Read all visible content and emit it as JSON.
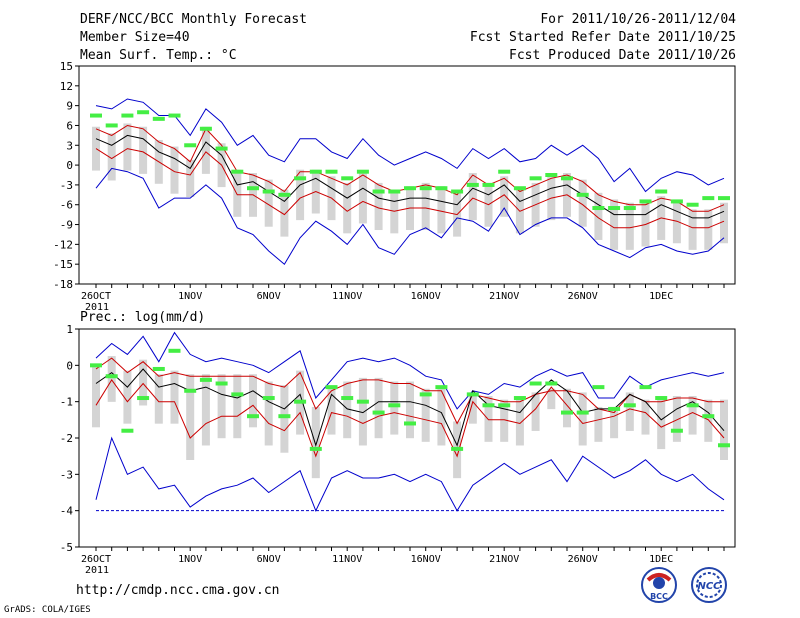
{
  "header": {
    "line1_left": "DERF/NCC/BCC Monthly Forecast",
    "line2_left": "Member Size=40",
    "line3_left": "Mean Surf. Temp.: °C",
    "line1_right": "For 2011/10/26-2011/12/04",
    "line2_right": "Fcst Started Refer Date 2011/10/25",
    "line3_right": "Fcst Produced Date 2011/10/26"
  },
  "footer": {
    "url": "http://cmdp.ncc.cma.gov.cn",
    "credit": "GrADS: COLA/IGES",
    "logo_left": "BCC",
    "logo_right": "NCC"
  },
  "colors": {
    "envelope": "#0000cc",
    "spread": "#cc0000",
    "mean": "#000000",
    "box": "#d4d4d4",
    "obs": "#44ee44",
    "dashed": "#0000cc"
  },
  "chart_data": [
    {
      "type": "line",
      "title": "Mean Surf. Temp.: °C",
      "x_labels": [
        "26OCT",
        "1NOV",
        "6NOV",
        "11NOV",
        "16NOV",
        "21NOV",
        "26NOV",
        "1DEC"
      ],
      "x_year_label": "2011",
      "ylim": [
        -18,
        15
      ],
      "yticks": [
        -18,
        -15,
        -12,
        -9,
        -6,
        -3,
        0,
        3,
        6,
        9,
        12,
        15
      ],
      "series": [
        {
          "name": "max",
          "values": [
            9,
            8.5,
            10,
            9.5,
            7.5,
            7.5,
            4.5,
            8.5,
            6.5,
            3,
            4.5,
            1.5,
            0.5,
            4,
            4,
            2,
            1,
            4,
            1.5,
            0,
            1,
            2,
            1,
            -0.5,
            2.5,
            1,
            2.5,
            0.5,
            1,
            3,
            1.5,
            3,
            1,
            -2.5,
            -0.5,
            -4,
            -2,
            -1,
            -1.5,
            -3,
            -2
          ]
        },
        {
          "name": "upper",
          "values": [
            5.5,
            4.5,
            6,
            5.5,
            3.5,
            2.5,
            0.5,
            5.5,
            3,
            -1,
            -1.5,
            -2.5,
            -4,
            -1,
            -1,
            -2,
            -3,
            -1.5,
            -3,
            -4,
            -3.5,
            -3,
            -3.5,
            -4.5,
            -1.5,
            -3,
            -2,
            -4,
            -3,
            -2,
            -1.5,
            -2.5,
            -4.5,
            -5.5,
            -6,
            -6,
            -5,
            -5.5,
            -7,
            -7,
            -6
          ]
        },
        {
          "name": "mean",
          "values": [
            4,
            3,
            4.5,
            4,
            2,
            1,
            -0.5,
            3.5,
            1.5,
            -3,
            -2.5,
            -4,
            -5.5,
            -3,
            -2,
            -3.5,
            -5,
            -3.5,
            -5,
            -5.5,
            -5,
            -5,
            -5.5,
            -6,
            -3.5,
            -4.5,
            -3,
            -5.5,
            -4.5,
            -3.5,
            -3,
            -4.5,
            -6,
            -7.5,
            -7.5,
            -7.5,
            -6,
            -7,
            -8,
            -8,
            -7
          ]
        },
        {
          "name": "lower",
          "values": [
            2.5,
            1,
            2.5,
            2,
            0.5,
            -1,
            -1.5,
            2,
            0,
            -4.5,
            -4.5,
            -6,
            -7.5,
            -5,
            -4,
            -5,
            -7,
            -5.5,
            -6.5,
            -7,
            -6.5,
            -6.5,
            -7,
            -7.5,
            -5,
            -6,
            -4.5,
            -7,
            -6,
            -5,
            -4.5,
            -6,
            -8,
            -9.5,
            -9.5,
            -9,
            -8,
            -8.5,
            -9.5,
            -9.5,
            -8.5
          ]
        },
        {
          "name": "min",
          "values": [
            -3.5,
            -0.5,
            -1,
            -2,
            -6.5,
            -5,
            -5,
            -3,
            -5,
            -9.5,
            -10.5,
            -13,
            -15,
            -11,
            -8.5,
            -10,
            -12,
            -9,
            -12.5,
            -13.5,
            -10.5,
            -9.5,
            -11,
            -8,
            -8.5,
            -10,
            -6.5,
            -10.5,
            -9,
            -8,
            -8,
            -9.5,
            -12,
            -13,
            -14,
            -12.5,
            -12,
            -13,
            -13.5,
            -13,
            -11
          ]
        }
      ],
      "obs": [
        7.5,
        6,
        7.5,
        8,
        7,
        7.5,
        3,
        5.5,
        2.5,
        -1,
        -3.5,
        -4,
        -4.5,
        -2,
        -1,
        -1,
        -2,
        -1,
        -4,
        -4,
        -3.5,
        -3.5,
        -3.5,
        -4,
        -3,
        -3,
        -1,
        -3.5,
        -2,
        -1.5,
        -2,
        -4.5,
        -6.5,
        -6.5,
        -6.5,
        -5.5,
        -4,
        -5.5,
        -6,
        -5,
        -5
      ]
    },
    {
      "type": "line",
      "title": "Prec.: log(mm/d)",
      "x_labels": [
        "26OCT",
        "1NOV",
        "6NOV",
        "11NOV",
        "16NOV",
        "21NOV",
        "26NOV",
        "1DEC"
      ],
      "x_year_label": "2011",
      "ylim": [
        -5,
        1
      ],
      "yticks": [
        -5,
        -4,
        -3,
        -2,
        -1,
        0,
        1
      ],
      "series": [
        {
          "name": "max",
          "values": [
            0.2,
            0.6,
            0.3,
            0.8,
            0.1,
            0.9,
            0.3,
            0.1,
            0.2,
            0.1,
            0,
            -0.2,
            0.1,
            0.4,
            -0.9,
            -0.4,
            0.1,
            0.2,
            0.1,
            0.2,
            0,
            -0.3,
            -0.4,
            -1.2,
            -0.7,
            -0.8,
            -0.5,
            -0.6,
            -0.3,
            -0.1,
            -0.3,
            -0.2,
            -0.9,
            -0.9,
            -0.3,
            -0.6,
            -0.4,
            -0.3,
            -0.2,
            -0.3,
            -0.2
          ]
        },
        {
          "name": "upper",
          "values": [
            -0.1,
            0.2,
            -0.2,
            0.1,
            -0.3,
            -0.2,
            -0.3,
            -0.3,
            -0.3,
            -0.3,
            -0.3,
            -0.5,
            -0.6,
            -0.2,
            -1.2,
            -0.7,
            -0.5,
            -0.4,
            -0.4,
            -0.5,
            -0.5,
            -0.7,
            -0.7,
            -1.6,
            -0.8,
            -0.9,
            -1.0,
            -1.0,
            -0.8,
            -0.7,
            -0.7,
            -0.8,
            -1.2,
            -1.3,
            -0.8,
            -1.0,
            -1.0,
            -0.9,
            -0.9,
            -1.0,
            -1.0
          ]
        },
        {
          "name": "mean",
          "values": [
            -0.5,
            -0.2,
            -0.6,
            -0.1,
            -0.6,
            -0.5,
            -0.7,
            -0.6,
            -0.8,
            -0.9,
            -0.7,
            -1.0,
            -1.2,
            -0.8,
            -2.2,
            -0.8,
            -1.2,
            -1.3,
            -1.0,
            -1.0,
            -1.0,
            -1.1,
            -1.3,
            -2.2,
            -0.7,
            -1.1,
            -1.2,
            -1.3,
            -0.8,
            -0.4,
            -0.7,
            -1.3,
            -1.2,
            -1.2,
            -0.8,
            -1.0,
            -1.5,
            -1.2,
            -1.0,
            -1.3,
            -1.8
          ]
        },
        {
          "name": "lower",
          "values": [
            -1.1,
            -0.4,
            -1.0,
            -0.5,
            -1.0,
            -1.0,
            -2.0,
            -1.6,
            -1.4,
            -1.4,
            -1.1,
            -1.6,
            -1.8,
            -1.3,
            -2.5,
            -1.3,
            -1.4,
            -1.6,
            -1.4,
            -1.3,
            -1.4,
            -1.5,
            -1.6,
            -2.5,
            -1.0,
            -1.5,
            -1.5,
            -1.6,
            -1.2,
            -0.6,
            -1.1,
            -1.6,
            -1.5,
            -1.4,
            -1.2,
            -1.3,
            -1.7,
            -1.5,
            -1.3,
            -1.5,
            -2.0
          ]
        },
        {
          "name": "min",
          "values": [
            -3.7,
            -2.0,
            -3.0,
            -2.8,
            -3.4,
            -3.3,
            -3.9,
            -3.6,
            -3.4,
            -3.3,
            -3.1,
            -3.5,
            -3.2,
            -2.9,
            -4.0,
            -3.1,
            -2.9,
            -3.1,
            -3.1,
            -3.0,
            -3.2,
            -3.0,
            -3.2,
            -4.0,
            -3.3,
            -3.0,
            -2.7,
            -3.0,
            -2.8,
            -2.6,
            -3.2,
            -2.5,
            -2.8,
            -3.1,
            -2.9,
            -2.6,
            -3.0,
            -3.2,
            -3.0,
            -3.4,
            -3.7
          ]
        }
      ],
      "dashed_baseline": -4,
      "obs": [
        0,
        -0.3,
        -1.8,
        -0.9,
        -0.1,
        0.4,
        -0.7,
        -0.4,
        -0.5,
        -0.8,
        -1.4,
        -0.9,
        -1.4,
        -1.0,
        -2.3,
        -0.6,
        -0.9,
        -1.0,
        -1.3,
        -1.1,
        -1.6,
        -0.8,
        -0.6,
        -2.3,
        -0.8,
        -1.1,
        -1.1,
        -0.9,
        -0.5,
        -0.5,
        -1.3,
        -1.3,
        -0.6,
        -1.2,
        -1.1,
        -0.6,
        -0.9,
        -1.8,
        -1.1,
        -1.4,
        -2.2
      ]
    }
  ]
}
